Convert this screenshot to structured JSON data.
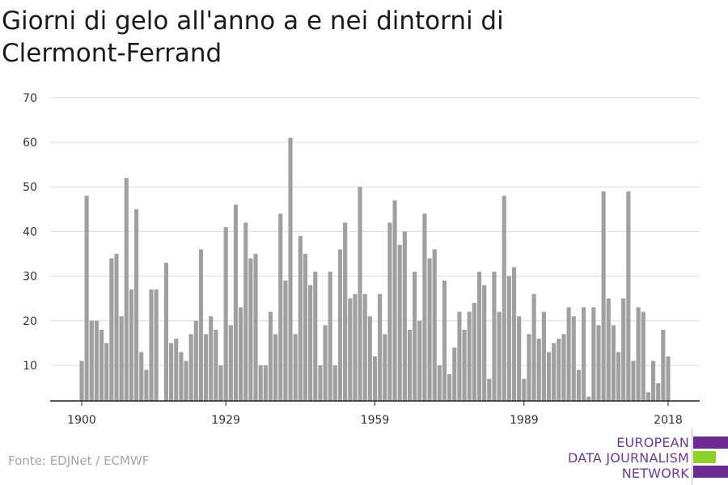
{
  "chart_data": {
    "type": "bar",
    "title": "Giorni di gelo all'anno a e nei dintorni di Clermont-Ferrand",
    "xlabel": "",
    "ylabel": "",
    "x_ticks": [
      1900,
      1929,
      1959,
      1989,
      2018
    ],
    "y_ticks": [
      10,
      20,
      30,
      40,
      50,
      60,
      70
    ],
    "ylim": [
      2,
      70
    ],
    "xlim": [
      1900,
      2018
    ],
    "grid": true,
    "bar_color": "#a0a0a0",
    "x": [
      1900,
      1901,
      1902,
      1903,
      1904,
      1905,
      1906,
      1907,
      1908,
      1909,
      1910,
      1911,
      1912,
      1913,
      1914,
      1915,
      1916,
      1917,
      1918,
      1919,
      1920,
      1921,
      1922,
      1923,
      1924,
      1925,
      1926,
      1927,
      1928,
      1929,
      1930,
      1931,
      1932,
      1933,
      1934,
      1935,
      1936,
      1937,
      1938,
      1939,
      1940,
      1941,
      1942,
      1943,
      1944,
      1945,
      1946,
      1947,
      1948,
      1949,
      1950,
      1951,
      1952,
      1953,
      1954,
      1955,
      1956,
      1957,
      1958,
      1959,
      1960,
      1961,
      1962,
      1963,
      1964,
      1965,
      1966,
      1967,
      1968,
      1969,
      1970,
      1971,
      1972,
      1973,
      1974,
      1975,
      1976,
      1977,
      1978,
      1979,
      1980,
      1981,
      1982,
      1983,
      1984,
      1985,
      1986,
      1987,
      1988,
      1989,
      1990,
      1991,
      1992,
      1993,
      1994,
      1995,
      1996,
      1997,
      1998,
      1999,
      2000,
      2001,
      2002,
      2003,
      2004,
      2005,
      2006,
      2007,
      2008,
      2009,
      2010,
      2011,
      2012,
      2013,
      2014,
      2015,
      2016,
      2017,
      2018
    ],
    "values": [
      11,
      48,
      20,
      20,
      18,
      15,
      34,
      35,
      21,
      52,
      27,
      45,
      13,
      9,
      27,
      27,
      0,
      33,
      15,
      16,
      13,
      11,
      17,
      20,
      36,
      17,
      21,
      18,
      10,
      41,
      19,
      46,
      23,
      42,
      34,
      35,
      10,
      10,
      22,
      17,
      44,
      29,
      61,
      17,
      39,
      35,
      28,
      31,
      10,
      19,
      31,
      10,
      36,
      42,
      25,
      26,
      50,
      26,
      21,
      12,
      26,
      17,
      42,
      47,
      37,
      40,
      18,
      31,
      20,
      44,
      34,
      36,
      10,
      29,
      8,
      14,
      22,
      18,
      22,
      24,
      31,
      28,
      7,
      31,
      22,
      48,
      30,
      32,
      21,
      7,
      17,
      26,
      16,
      22,
      13,
      15,
      16,
      17,
      23,
      21,
      9,
      23,
      3,
      23,
      19,
      49,
      25,
      19,
      13,
      25,
      49,
      11,
      23,
      22,
      4,
      11,
      6,
      18,
      12
    ]
  },
  "source": "Fonte: EDJNet / ECMWF",
  "logo": {
    "line1": "EUROPEAN",
    "line2": "DATA JOURNALISM",
    "line3": "NETWORK",
    "colors": [
      "#6b2a8f",
      "#8fd12b",
      "#6b2a8f"
    ]
  }
}
